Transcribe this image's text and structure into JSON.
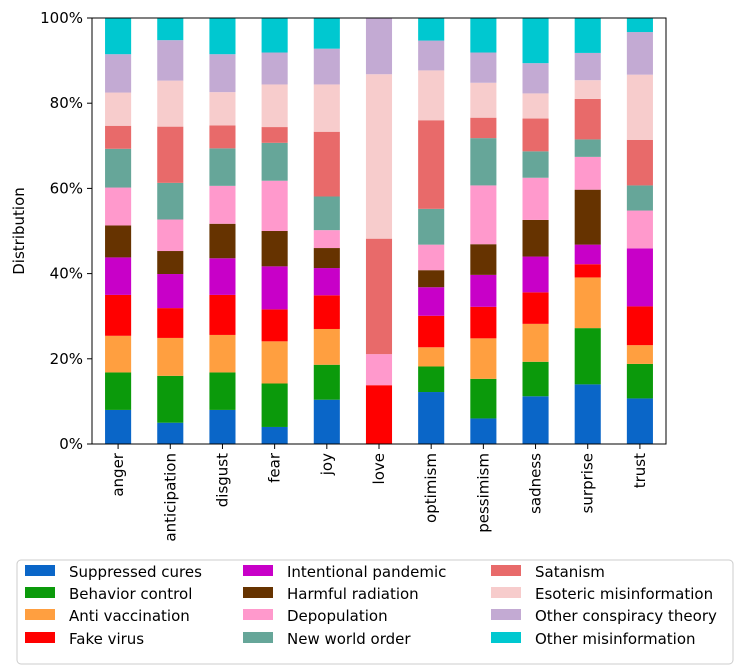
{
  "chart_data": {
    "type": "bar",
    "stacked": true,
    "title": "",
    "xlabel": "",
    "ylabel": "Distribution",
    "ylim": [
      0,
      1
    ],
    "yticks": [
      "0%",
      "20%",
      "40%",
      "60%",
      "80%",
      "100%"
    ],
    "legend_position": "bottom",
    "categories": [
      "anger",
      "anticipation",
      "disgust",
      "fear",
      "joy",
      "love",
      "optimism",
      "pessimism",
      "sadness",
      "surprise",
      "trust"
    ],
    "series": [
      {
        "name": "Suppressed cures",
        "color": "#0a66c8",
        "values": [
          0.08,
          0.05,
          0.08,
          0.04,
          0.104,
          0.0,
          0.122,
          0.06,
          0.112,
          0.14,
          0.107
        ]
      },
      {
        "name": "Behavior control",
        "color": "#0b9a0b",
        "values": [
          0.088,
          0.11,
          0.088,
          0.102,
          0.082,
          0.0,
          0.06,
          0.093,
          0.081,
          0.132,
          0.081
        ]
      },
      {
        "name": "Anti vaccination",
        "color": "#ff9f40",
        "values": [
          0.086,
          0.089,
          0.088,
          0.099,
          0.084,
          0.0,
          0.045,
          0.095,
          0.089,
          0.119,
          0.044
        ]
      },
      {
        "name": "Fake virus",
        "color": "#ff0000",
        "values": [
          0.096,
          0.07,
          0.094,
          0.075,
          0.079,
          0.138,
          0.074,
          0.074,
          0.074,
          0.031,
          0.091
        ]
      },
      {
        "name": "Intentional pandemic",
        "color": "#c800c8",
        "values": [
          0.088,
          0.08,
          0.086,
          0.101,
          0.064,
          0.0,
          0.067,
          0.075,
          0.084,
          0.046,
          0.136
        ]
      },
      {
        "name": "Harmful radiation",
        "color": "#663300",
        "values": [
          0.075,
          0.054,
          0.081,
          0.083,
          0.047,
          0.0,
          0.04,
          0.072,
          0.086,
          0.129,
          0.0
        ]
      },
      {
        "name": "Depopulation",
        "color": "#ff99cc",
        "values": [
          0.089,
          0.074,
          0.089,
          0.118,
          0.042,
          0.073,
          0.06,
          0.138,
          0.099,
          0.077,
          0.089
        ]
      },
      {
        "name": "New world order",
        "color": "#66a699",
        "values": [
          0.091,
          0.086,
          0.088,
          0.089,
          0.079,
          0.0,
          0.084,
          0.111,
          0.062,
          0.041,
          0.059
        ]
      },
      {
        "name": "Satanism",
        "color": "#e86a6a",
        "values": [
          0.054,
          0.132,
          0.054,
          0.037,
          0.152,
          0.271,
          0.208,
          0.048,
          0.077,
          0.095,
          0.107
        ]
      },
      {
        "name": "Esoteric misinformation",
        "color": "#f7cccc",
        "values": [
          0.078,
          0.108,
          0.078,
          0.1,
          0.111,
          0.386,
          0.117,
          0.082,
          0.059,
          0.044,
          0.153
        ]
      },
      {
        "name": "Other conspiracy theory",
        "color": "#c3aad3",
        "values": [
          0.09,
          0.095,
          0.089,
          0.075,
          0.084,
          0.132,
          0.07,
          0.071,
          0.071,
          0.064,
          0.1
        ]
      },
      {
        "name": "Other misinformation",
        "color": "#00c8d0",
        "values": [
          0.085,
          0.052,
          0.085,
          0.081,
          0.072,
          0.0,
          0.053,
          0.081,
          0.106,
          0.082,
          0.033
        ]
      }
    ]
  }
}
